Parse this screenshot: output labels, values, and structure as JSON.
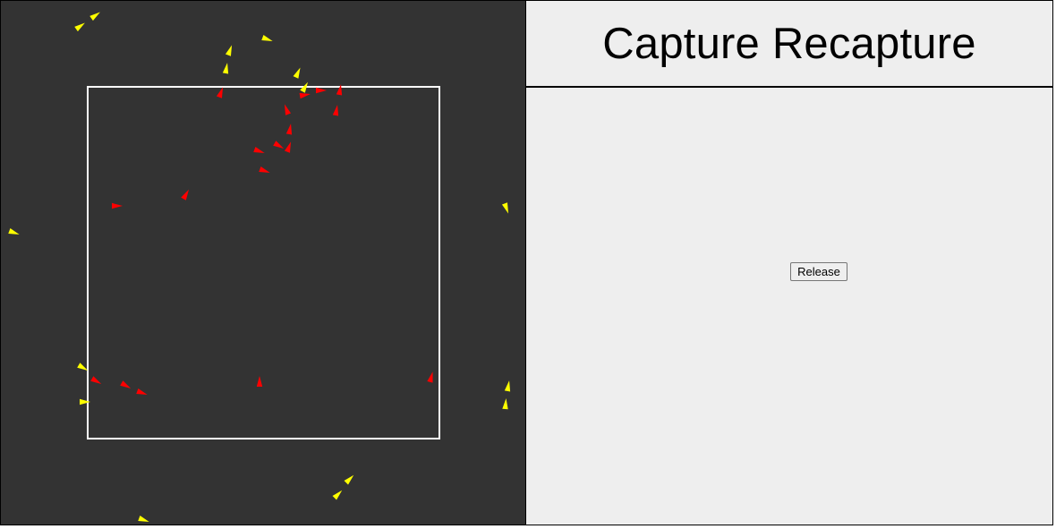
{
  "title": "Capture Recapture",
  "controls": {
    "release_label": "Release"
  },
  "colors": {
    "field_background": "#333333",
    "capture_boundary": "#ffffff",
    "marked_fish": "#ff0000",
    "unmarked_fish": "#ffff00",
    "panel_background": "#eeeeee"
  }
}
